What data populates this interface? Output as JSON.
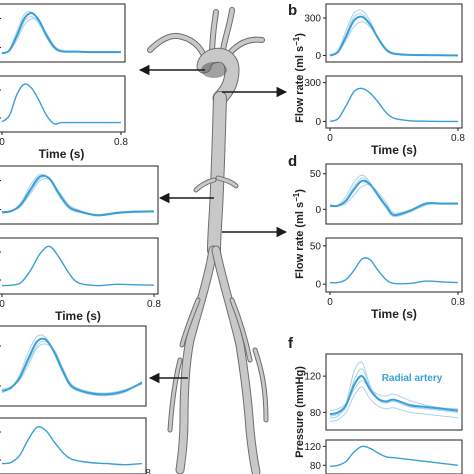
{
  "colors": {
    "curve": "#3b9fd6",
    "curve_light": "#a9d3ee",
    "axis": "#222222",
    "vessel": "#c8c8c8",
    "vessel_edge": "#6e6e6e",
    "arrow": "#1a1a1a"
  },
  "chart_data": [
    {
      "id": "top-left-upper",
      "type": "line",
      "x": [
        0,
        0.05,
        0.1,
        0.15,
        0.2,
        0.25,
        0.3,
        0.35,
        0.4,
        0.5,
        0.6,
        0.7,
        0.8
      ],
      "series_mean": [
        0.03,
        0.1,
        0.45,
        0.85,
        0.98,
        0.8,
        0.45,
        0.18,
        0.08,
        0.07,
        0.06,
        0.06,
        0.06
      ],
      "series_individual": [
        [
          0.02,
          0.12,
          0.55,
          0.95,
          1.0,
          0.75,
          0.4,
          0.15,
          0.06,
          0.06,
          0.05,
          0.05,
          0.05
        ],
        [
          0.03,
          0.08,
          0.35,
          0.7,
          0.85,
          0.78,
          0.5,
          0.22,
          0.1,
          0.08,
          0.07,
          0.07,
          0.07
        ],
        [
          0.04,
          0.1,
          0.4,
          0.78,
          0.9,
          0.72,
          0.42,
          0.18,
          0.09,
          0.08,
          0.07,
          0.06,
          0.06
        ]
      ],
      "xlim": [
        0,
        0.8
      ]
    },
    {
      "id": "top-left-lower",
      "type": "line",
      "x": [
        0,
        0.05,
        0.1,
        0.15,
        0.2,
        0.25,
        0.3,
        0.35,
        0.4,
        0.5,
        0.6,
        0.7,
        0.8
      ],
      "series_mean": [
        0.05,
        0.2,
        0.7,
        0.95,
        0.85,
        0.55,
        0.2,
        0.0,
        0.03,
        0.03,
        0.03,
        0.03,
        0.03
      ],
      "xlim": [
        0,
        0.8
      ],
      "xticks": [
        "0",
        "0.8"
      ],
      "xlabel": "Time (s)"
    },
    {
      "id": "b-upper",
      "type": "line",
      "x": [
        0,
        0.05,
        0.1,
        0.15,
        0.2,
        0.25,
        0.3,
        0.35,
        0.4,
        0.5,
        0.6,
        0.7,
        0.8
      ],
      "series_mean": [
        0,
        30,
        150,
        280,
        310,
        250,
        140,
        50,
        15,
        5,
        3,
        2,
        0
      ],
      "series_individual": [
        [
          0,
          40,
          200,
          340,
          360,
          280,
          140,
          45,
          10,
          5,
          3,
          2,
          0
        ],
        [
          0,
          25,
          120,
          230,
          270,
          230,
          140,
          55,
          20,
          8,
          4,
          2,
          0
        ],
        [
          0,
          35,
          170,
          310,
          330,
          260,
          130,
          40,
          12,
          6,
          3,
          2,
          0
        ]
      ],
      "xlim": [
        0,
        0.8
      ],
      "ylim": [
        -20,
        380
      ],
      "yticks": [
        "0",
        "300"
      ]
    },
    {
      "id": "b-lower",
      "type": "line",
      "x": [
        0,
        0.05,
        0.1,
        0.15,
        0.2,
        0.25,
        0.3,
        0.35,
        0.4,
        0.5,
        0.6,
        0.7,
        0.8
      ],
      "series_mean": [
        0,
        20,
        120,
        230,
        255,
        220,
        150,
        70,
        25,
        5,
        2,
        0,
        0
      ],
      "xlim": [
        0,
        0.8
      ],
      "ylim": [
        -20,
        320
      ],
      "yticks": [
        "0",
        "300"
      ],
      "xticks": [
        "0",
        "0.8"
      ],
      "xlabel": "Time (s)"
    },
    {
      "id": "mid-left-upper",
      "type": "line",
      "x": [
        0,
        0.05,
        0.1,
        0.15,
        0.2,
        0.25,
        0.3,
        0.35,
        0.4,
        0.5,
        0.6,
        0.7,
        0.8
      ],
      "series_mean": [
        0.12,
        0.15,
        0.3,
        0.65,
        0.95,
        0.9,
        0.55,
        0.25,
        0.15,
        0.05,
        0.1,
        0.13,
        0.14
      ],
      "series_individual": [
        [
          0.1,
          0.14,
          0.35,
          0.75,
          1.0,
          0.88,
          0.5,
          0.22,
          0.12,
          0.06,
          0.12,
          0.15,
          0.15
        ],
        [
          0.13,
          0.16,
          0.28,
          0.55,
          0.85,
          0.88,
          0.6,
          0.3,
          0.18,
          0.04,
          0.09,
          0.12,
          0.13
        ],
        [
          0.14,
          0.15,
          0.26,
          0.6,
          0.9,
          0.92,
          0.58,
          0.27,
          0.16,
          0.07,
          0.11,
          0.13,
          0.13
        ]
      ],
      "xlim": [
        0,
        0.8
      ]
    },
    {
      "id": "mid-left-lower",
      "type": "line",
      "x": [
        0,
        0.05,
        0.1,
        0.15,
        0.2,
        0.25,
        0.3,
        0.35,
        0.4,
        0.5,
        0.6,
        0.7,
        0.8
      ],
      "series_mean": [
        0.05,
        0.06,
        0.12,
        0.4,
        0.78,
        0.95,
        0.7,
        0.35,
        0.12,
        0.05,
        0.08,
        0.07,
        0.06
      ],
      "xlim": [
        0,
        0.8
      ],
      "xticks": [
        "0",
        "0.8"
      ],
      "xlabel": "Time (s)"
    },
    {
      "id": "d-upper",
      "type": "line",
      "x": [
        0,
        0.05,
        0.1,
        0.15,
        0.2,
        0.25,
        0.3,
        0.35,
        0.4,
        0.5,
        0.6,
        0.7,
        0.8
      ],
      "series_mean": [
        5,
        5,
        12,
        28,
        40,
        35,
        20,
        5,
        -8,
        -2,
        8,
        8,
        8
      ],
      "series_individual": [
        [
          5,
          6,
          18,
          38,
          48,
          38,
          18,
          2,
          -10,
          -4,
          6,
          8,
          8
        ],
        [
          6,
          5,
          8,
          20,
          32,
          34,
          24,
          10,
          -5,
          -1,
          9,
          9,
          9
        ],
        [
          4,
          5,
          14,
          32,
          44,
          36,
          20,
          4,
          -9,
          -3,
          7,
          8,
          8
        ]
      ],
      "xlim": [
        0,
        0.8
      ],
      "ylim": [
        -15,
        58
      ],
      "yticks": [
        "0",
        "50"
      ]
    },
    {
      "id": "d-lower",
      "type": "line",
      "x": [
        0,
        0.05,
        0.1,
        0.15,
        0.2,
        0.25,
        0.3,
        0.35,
        0.4,
        0.5,
        0.6,
        0.7,
        0.8
      ],
      "series_mean": [
        2,
        2,
        6,
        18,
        33,
        32,
        18,
        6,
        1,
        1,
        4,
        3,
        2
      ],
      "xlim": [
        0,
        0.8
      ],
      "ylim": [
        -5,
        55
      ],
      "yticks": [
        "0",
        "50"
      ],
      "xticks": [
        "0",
        "0.8"
      ],
      "xlabel": "Time (s)"
    },
    {
      "id": "bottom-left-upper",
      "type": "line",
      "x": [
        0,
        0.05,
        0.1,
        0.15,
        0.2,
        0.25,
        0.3,
        0.35,
        0.4,
        0.5,
        0.6,
        0.7,
        0.8
      ],
      "series_mean": [
        0.15,
        0.2,
        0.35,
        0.65,
        0.92,
        0.95,
        0.75,
        0.45,
        0.22,
        0.12,
        0.1,
        0.15,
        0.28
      ],
      "series_individual": [
        [
          0.12,
          0.2,
          0.4,
          0.75,
          1.0,
          0.98,
          0.72,
          0.42,
          0.2,
          0.1,
          0.08,
          0.13,
          0.3
        ],
        [
          0.18,
          0.22,
          0.32,
          0.55,
          0.82,
          0.88,
          0.78,
          0.5,
          0.25,
          0.14,
          0.12,
          0.17,
          0.26
        ],
        [
          0.16,
          0.2,
          0.36,
          0.6,
          0.86,
          0.92,
          0.74,
          0.46,
          0.23,
          0.12,
          0.1,
          0.16,
          0.27
        ]
      ],
      "xlim": [
        0,
        0.8
      ]
    },
    {
      "id": "bottom-left-lower",
      "type": "line",
      "x": [
        0,
        0.05,
        0.1,
        0.15,
        0.2,
        0.25,
        0.3,
        0.35,
        0.4,
        0.5,
        0.6,
        0.7,
        0.8
      ],
      "series_mean": [
        0.1,
        0.12,
        0.25,
        0.55,
        0.78,
        0.72,
        0.5,
        0.3,
        0.18,
        0.12,
        0.1,
        0.08,
        0.1
      ],
      "xlim": [
        0,
        0.8
      ]
    },
    {
      "id": "f-upper",
      "type": "line",
      "annotation": "Radial artery",
      "x": [
        0,
        0.05,
        0.1,
        0.15,
        0.2,
        0.25,
        0.3,
        0.35,
        0.4,
        0.5,
        0.6,
        0.7,
        0.8
      ],
      "series_mean": [
        78,
        80,
        88,
        110,
        120,
        105,
        95,
        92,
        94,
        88,
        86,
        84,
        82
      ],
      "series_individual": [
        [
          74,
          76,
          90,
          125,
          135,
          110,
          96,
          92,
          94,
          87,
          84,
          82,
          80
        ],
        [
          82,
          84,
          90,
          105,
          115,
          106,
          100,
          98,
          100,
          93,
          88,
          85,
          84
        ],
        [
          70,
          72,
          80,
          98,
          108,
          95,
          87,
          84,
          85,
          80,
          78,
          76,
          74
        ],
        [
          76,
          78,
          86,
          115,
          128,
          108,
          94,
          90,
          92,
          86,
          84,
          82,
          80
        ]
      ],
      "xlim": [
        0,
        0.8
      ],
      "ylim": [
        65,
        140
      ],
      "yticks": [
        "80",
        "120"
      ]
    },
    {
      "id": "f-lower",
      "type": "line",
      "x": [
        0,
        0.05,
        0.1,
        0.15,
        0.2,
        0.25,
        0.3,
        0.35,
        0.4,
        0.5,
        0.6,
        0.7,
        0.8
      ],
      "series_mean": [
        78,
        80,
        88,
        108,
        120,
        116,
        106,
        98,
        96,
        92,
        88,
        84,
        80
      ],
      "xlim": [
        0,
        0.8
      ],
      "ylim": [
        70,
        125
      ],
      "yticks": [
        "80",
        "120"
      ]
    }
  ],
  "labels": {
    "b": "b",
    "d": "d",
    "f": "f",
    "flow_rate_b": "Flow rate (ml s",
    "flow_rate_d": "Flow rate (ml s",
    "flow_sup": "−1",
    "flow_close": ")",
    "pressure": "Pressure (mmHg)",
    "partial_tick_bottom_left": "8"
  }
}
